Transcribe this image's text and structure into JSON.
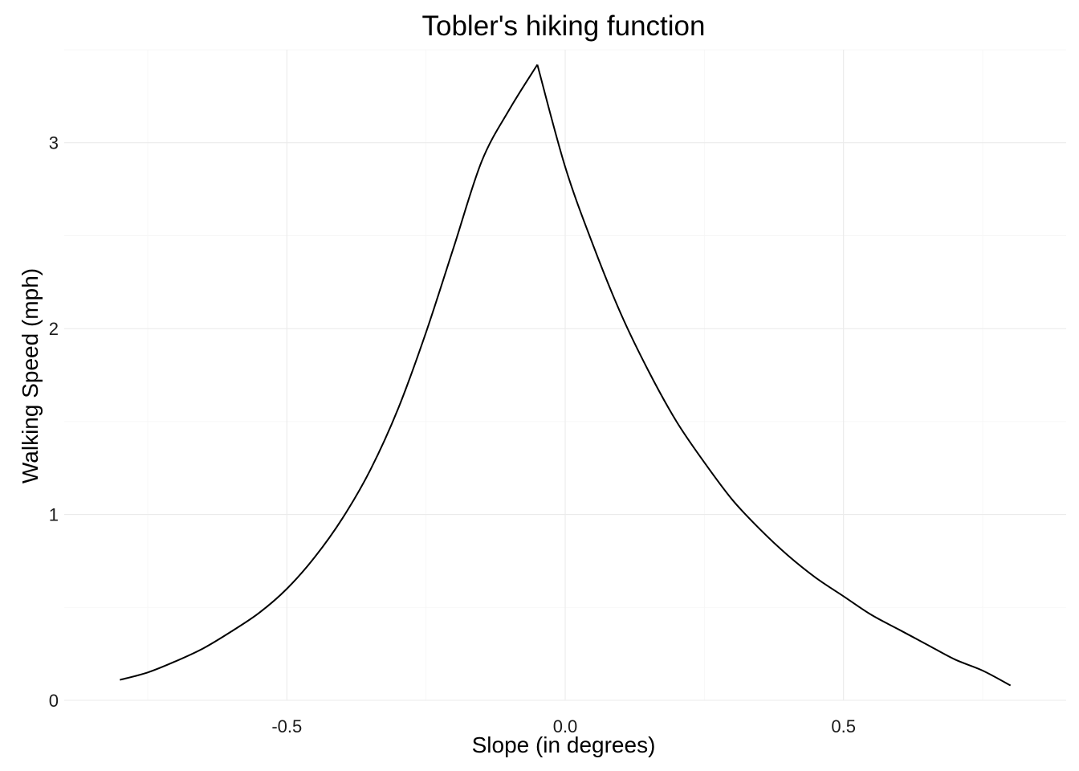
{
  "chart_data": {
    "type": "line",
    "title": "Tobler's hiking function",
    "xlabel": "Slope (in degrees)",
    "ylabel": "Walking Speed (mph)",
    "xlim": [
      -0.9,
      0.9
    ],
    "ylim": [
      0,
      3.5
    ],
    "x_ticks": [
      -0.5,
      0.0,
      0.5
    ],
    "x_tick_labels": [
      "-0.5",
      "0.0",
      "0.5"
    ],
    "y_ticks": [
      0,
      1,
      2,
      3
    ],
    "y_tick_labels": [
      "0",
      "1",
      "2",
      "3"
    ],
    "grid": true,
    "legend": "none",
    "line_color": "#000000",
    "series": [
      {
        "x": [
          -0.8,
          -0.75,
          -0.7,
          -0.65,
          -0.6,
          -0.55,
          -0.5,
          -0.45,
          -0.4,
          -0.35,
          -0.3,
          -0.25,
          -0.2,
          -0.15,
          -0.1,
          -0.05,
          0.0,
          0.05,
          0.1,
          0.15,
          0.2,
          0.25,
          0.3,
          0.35,
          0.4,
          0.45,
          0.5,
          0.55,
          0.6,
          0.65,
          0.7,
          0.75,
          0.8
        ],
        "y": [
          0.11,
          0.15,
          0.21,
          0.28,
          0.37,
          0.47,
          0.6,
          0.77,
          0.98,
          1.24,
          1.57,
          1.98,
          2.44,
          2.9,
          3.18,
          3.42,
          2.87,
          2.45,
          2.08,
          1.77,
          1.5,
          1.28,
          1.08,
          0.92,
          0.78,
          0.66,
          0.56,
          0.46,
          0.38,
          0.3,
          0.22,
          0.16,
          0.08
        ]
      }
    ]
  }
}
